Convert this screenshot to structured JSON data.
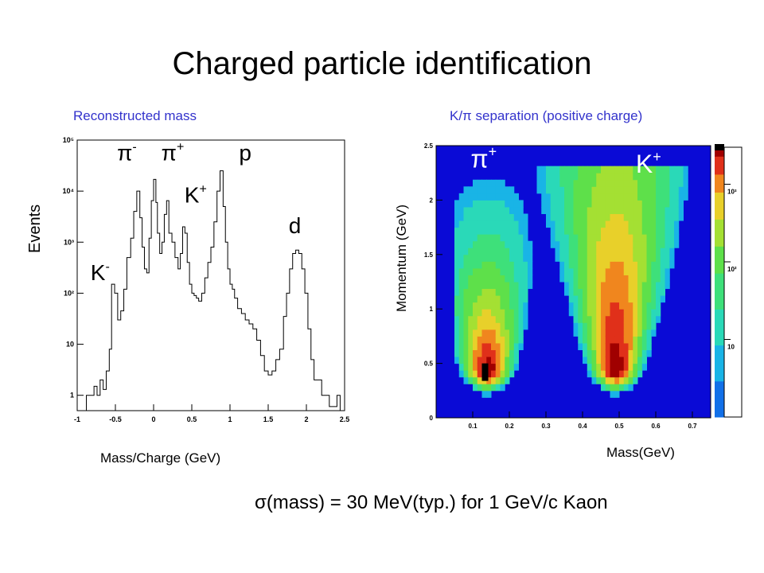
{
  "slide_title": "Charged particle identification",
  "footer_text": "σ(mass) = 30 MeV(typ.)  for 1 GeV/c Kaon",
  "chart_data": [
    {
      "type": "line",
      "title": "Reconstructed mass",
      "xlabel": "Mass/Charge (GeV)",
      "ylabel": "Events",
      "xlim": [
        -1,
        2.5
      ],
      "ylim": [
        0.5,
        100000
      ],
      "log_y": true,
      "grid": false,
      "x_ticks": [
        -1,
        -0.5,
        0,
        0.5,
        1,
        1.5,
        2,
        2.5
      ],
      "x_tick_labels": [
        "-1",
        "-0.5",
        "0",
        "0.5",
        "1",
        "1.5",
        "2",
        "2.5"
      ],
      "y_ticks": [
        1,
        10,
        100,
        1000,
        10000,
        100000
      ],
      "y_tick_labels": [
        "1",
        "10",
        "10²",
        "10³",
        "10⁴",
        "10⁵"
      ],
      "x": [
        -0.88,
        -0.82,
        -0.78,
        -0.74,
        -0.7,
        -0.66,
        -0.62,
        -0.58,
        -0.55,
        -0.51,
        -0.47,
        -0.43,
        -0.39,
        -0.35,
        -0.3,
        -0.26,
        -0.22,
        -0.18,
        -0.15,
        -0.12,
        -0.09,
        -0.06,
        -0.03,
        0,
        0.03,
        0.05,
        0.08,
        0.11,
        0.14,
        0.17,
        0.2,
        0.24,
        0.28,
        0.32,
        0.35,
        0.38,
        0.41,
        0.44,
        0.47,
        0.5,
        0.53,
        0.56,
        0.59,
        0.63,
        0.67,
        0.71,
        0.75,
        0.79,
        0.83,
        0.87,
        0.91,
        0.94,
        0.97,
        1.0,
        1.03,
        1.06,
        1.1,
        1.15,
        1.2,
        1.25,
        1.3,
        1.35,
        1.4,
        1.45,
        1.5,
        1.55,
        1.6,
        1.65,
        1.7,
        1.74,
        1.78,
        1.82,
        1.86,
        1.9,
        1.94,
        1.98,
        2.02,
        2.06,
        2.1,
        2.2,
        2.3,
        2.4
      ],
      "y": [
        1,
        1,
        1.5,
        1,
        2,
        1.3,
        3,
        8,
        150,
        100,
        30,
        45,
        120,
        500,
        1200,
        4000,
        10000,
        3000,
        800,
        300,
        250,
        1200,
        6500,
        17000,
        6000,
        1500,
        600,
        1000,
        3500,
        6500,
        1500,
        1000,
        500,
        300,
        600,
        2000,
        1500,
        400,
        150,
        100,
        90,
        80,
        70,
        100,
        200,
        400,
        800,
        2500,
        10000,
        25000,
        5000,
        1000,
        300,
        150,
        120,
        80,
        50,
        40,
        30,
        25,
        20,
        12,
        6,
        3,
        2.5,
        3,
        5,
        8,
        35,
        100,
        300,
        600,
        700,
        600,
        300,
        100,
        20,
        5,
        2,
        1,
        0.6,
        1
      ],
      "annotations": [
        {
          "text": "π",
          "sup": "-",
          "x": -0.35,
          "y": 40000
        },
        {
          "text": "π",
          "sup": "+",
          "x": 0.25,
          "y": 40000
        },
        {
          "text": "p",
          "x": 1.2,
          "y": 40000
        },
        {
          "text": "K",
          "sup": "+",
          "x": 0.55,
          "y": 6000
        },
        {
          "text": "d",
          "x": 1.85,
          "y": 1500
        },
        {
          "text": "K",
          "sup": "-",
          "x": -0.7,
          "y": 180
        }
      ]
    },
    {
      "type": "heatmap",
      "title": "K/π separation (positive charge)",
      "xlabel": "Mass(GeV)",
      "ylabel": "Momentum (GeV)",
      "xlim": [
        0,
        0.75
      ],
      "ylim": [
        0,
        2.5
      ],
      "x_ticks": [
        0.1,
        0.2,
        0.3,
        0.4,
        0.5,
        0.6,
        0.7
      ],
      "x_tick_labels": [
        "0.1",
        "0.2",
        "0.3",
        "0.4",
        "0.5",
        "0.6",
        "0.7"
      ],
      "y_ticks": [
        0,
        0.5,
        1,
        1.5,
        2,
        2.5
      ],
      "y_tick_labels": [
        "0",
        "0.5",
        "1",
        "1.5",
        "2",
        "2.5"
      ],
      "colorbar_ticks": [
        10,
        100,
        1000
      ],
      "colorbar_tick_labels": [
        "10",
        "10²",
        "10³"
      ],
      "clusters": [
        {
          "label": "π",
          "sup": "+",
          "label_x": 0.13,
          "label_y": 2.3,
          "center_mass": 0.14,
          "peak_momentum": 0.45
        },
        {
          "label": "K",
          "sup": "+",
          "label_x": 0.58,
          "label_y": 2.25,
          "center_mass": 0.49,
          "peak_momentum": 0.45
        }
      ]
    }
  ]
}
